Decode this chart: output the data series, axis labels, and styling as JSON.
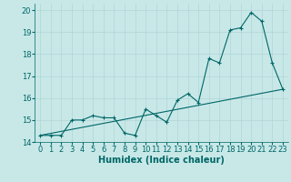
{
  "xlabel": "Humidex (Indice chaleur)",
  "ylabel": "",
  "background_color": "#c8e8e8",
  "grid_color": "#b0d4d4",
  "line_color": "#006666",
  "xlim": [
    -0.5,
    23.5
  ],
  "ylim": [
    14,
    20.3
  ],
  "yticks": [
    14,
    15,
    16,
    17,
    18,
    19,
    20
  ],
  "xticks": [
    0,
    1,
    2,
    3,
    4,
    5,
    6,
    7,
    8,
    9,
    10,
    11,
    12,
    13,
    14,
    15,
    16,
    17,
    18,
    19,
    20,
    21,
    22,
    23
  ],
  "line1_x": [
    0,
    1,
    2,
    3,
    4,
    5,
    6,
    7,
    8,
    9,
    10,
    11,
    12,
    13,
    14,
    15,
    16,
    17,
    18,
    19,
    20,
    21,
    22,
    23
  ],
  "line1_y": [
    14.3,
    14.3,
    14.3,
    15.0,
    15.0,
    15.2,
    15.1,
    15.1,
    14.4,
    14.3,
    15.5,
    15.2,
    14.9,
    15.9,
    16.2,
    15.8,
    17.8,
    17.6,
    19.1,
    19.2,
    19.9,
    19.5,
    17.6,
    16.4
  ],
  "line2_x": [
    0,
    23
  ],
  "line2_y": [
    14.3,
    16.4
  ],
  "xlabel_fontsize": 7,
  "tick_fontsize": 6
}
